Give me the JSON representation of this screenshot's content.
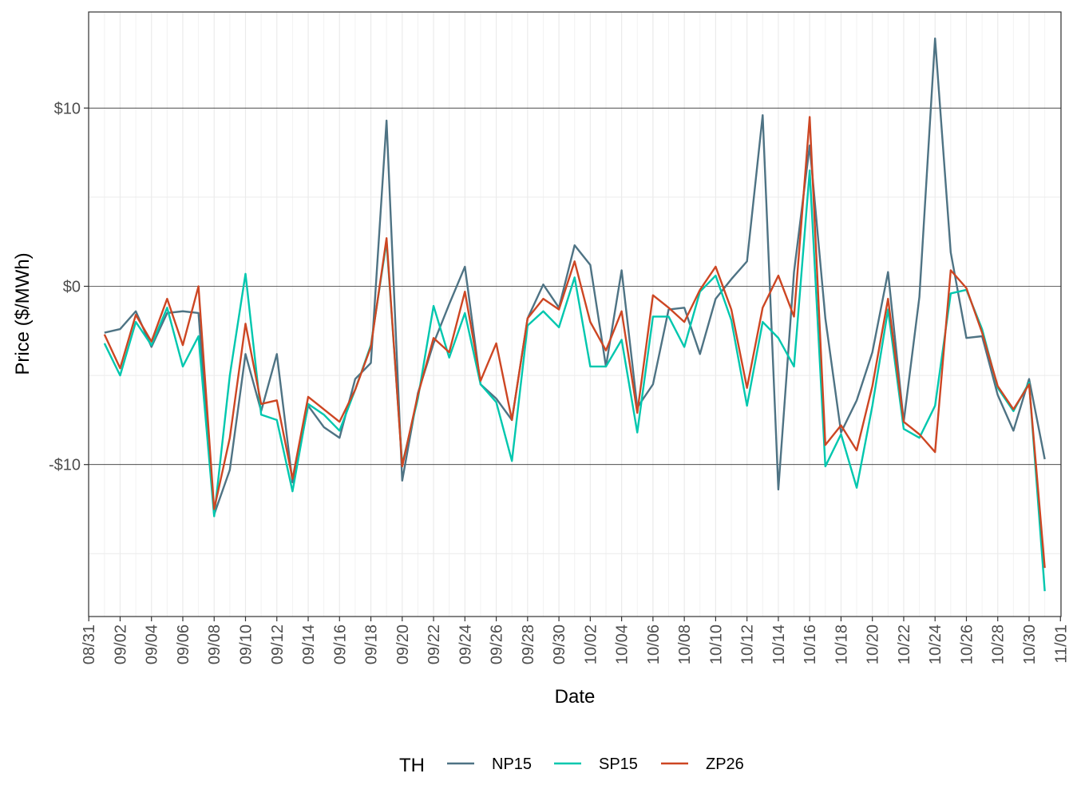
{
  "chart_data": {
    "type": "line",
    "xlabel": "Date",
    "ylabel": "Price ($/MWh)",
    "x_ticks": [
      "08/31",
      "09/02",
      "09/04",
      "09/06",
      "09/08",
      "09/10",
      "09/12",
      "09/14",
      "09/16",
      "09/18",
      "09/20",
      "09/22",
      "09/24",
      "09/26",
      "09/28",
      "09/30",
      "10/02",
      "10/04",
      "10/06",
      "10/08",
      "10/10",
      "10/12",
      "10/14",
      "10/16",
      "10/18",
      "10/20",
      "10/22",
      "10/24",
      "10/26",
      "10/28",
      "10/30",
      "11/01"
    ],
    "y_ticks": [
      "-$10",
      "$0",
      "$10"
    ],
    "y_tick_values": [
      -10,
      0,
      10
    ],
    "ylim": [
      -18.5,
      15.5
    ],
    "grid": true,
    "legend": {
      "title": "TH",
      "position": "bottom"
    },
    "x": [
      "09/01",
      "09/02",
      "09/03",
      "09/04",
      "09/05",
      "09/06",
      "09/07",
      "09/08",
      "09/09",
      "09/10",
      "09/11",
      "09/12",
      "09/13",
      "09/14",
      "09/15",
      "09/16",
      "09/17",
      "09/18",
      "09/19",
      "09/20",
      "09/21",
      "09/22",
      "09/23",
      "09/24",
      "09/25",
      "09/26",
      "09/27",
      "09/28",
      "09/29",
      "09/30",
      "10/01",
      "10/02",
      "10/03",
      "10/04",
      "10/05",
      "10/06",
      "10/07",
      "10/08",
      "10/09",
      "10/10",
      "10/11",
      "10/12",
      "10/13",
      "10/14",
      "10/15",
      "10/16",
      "10/17",
      "10/18",
      "10/19",
      "10/20",
      "10/21",
      "10/22",
      "10/23",
      "10/24",
      "10/25",
      "10/26",
      "10/27",
      "10/28",
      "10/29",
      "10/30",
      "10/31"
    ],
    "series": [
      {
        "name": "NP15",
        "color": "#4E7384",
        "values": [
          -2.6,
          -2.4,
          -1.4,
          -3.4,
          -1.5,
          -1.4,
          -1.5,
          -12.8,
          -10.3,
          -3.8,
          -7.0,
          -3.8,
          -11.0,
          -6.7,
          -7.9,
          -8.5,
          -5.2,
          -4.3,
          9.3,
          -10.9,
          -6.0,
          -3.2,
          -1.0,
          1.1,
          -5.5,
          -6.3,
          -7.5,
          -1.8,
          0.1,
          -1.2,
          2.3,
          1.2,
          -4.5,
          0.9,
          -6.8,
          -5.5,
          -1.3,
          -1.2,
          -3.8,
          -0.7,
          0.4,
          1.4,
          9.6,
          -11.4,
          0.8,
          7.9,
          -1.8,
          -8.2,
          -6.4,
          -3.7,
          0.8,
          -7.6,
          -0.6,
          13.9,
          1.9,
          -2.9,
          -2.8,
          -6.1,
          -8.1,
          -5.2,
          -9.7
        ]
      },
      {
        "name": "SP15",
        "color": "#00C7AE",
        "values": [
          -3.2,
          -5.0,
          -2.0,
          -3.3,
          -1.2,
          -4.5,
          -2.8,
          -12.9,
          -5.0,
          0.7,
          -7.2,
          -7.5,
          -11.5,
          -6.6,
          -7.2,
          -8.1,
          -5.8,
          -3.3,
          2.5,
          -10.0,
          -6.3,
          -1.1,
          -4.0,
          -1.5,
          -5.5,
          -6.5,
          -9.8,
          -2.2,
          -1.4,
          -2.3,
          0.5,
          -4.5,
          -4.5,
          -3.0,
          -8.2,
          -1.7,
          -1.7,
          -3.4,
          -0.3,
          0.6,
          -1.9,
          -6.7,
          -2.0,
          -2.9,
          -4.5,
          6.5,
          -10.1,
          -8.3,
          -11.3,
          -6.7,
          -1.3,
          -8.0,
          -8.5,
          -6.7,
          -0.4,
          -0.2,
          -2.4,
          -5.7,
          -7.0,
          -5.4,
          -17.1
        ]
      },
      {
        "name": "ZP26",
        "color": "#CD4623",
        "values": [
          -2.7,
          -4.6,
          -1.6,
          -3.1,
          -0.7,
          -3.3,
          0.0,
          -12.5,
          -8.5,
          -2.1,
          -6.6,
          -6.4,
          -10.8,
          -6.2,
          -6.9,
          -7.6,
          -5.8,
          -3.4,
          2.7,
          -10.1,
          -6.1,
          -2.9,
          -3.7,
          -0.3,
          -5.3,
          -3.2,
          -7.5,
          -1.8,
          -0.7,
          -1.3,
          1.4,
          -2.0,
          -3.6,
          -1.4,
          -7.1,
          -0.5,
          -1.2,
          -2.0,
          -0.2,
          1.1,
          -1.3,
          -5.7,
          -1.2,
          0.6,
          -1.7,
          9.5,
          -8.9,
          -7.8,
          -9.2,
          -5.6,
          -0.7,
          -7.6,
          -8.3,
          -9.3,
          0.9,
          -0.1,
          -2.6,
          -5.6,
          -6.9,
          -5.5,
          -15.8
        ]
      }
    ]
  }
}
